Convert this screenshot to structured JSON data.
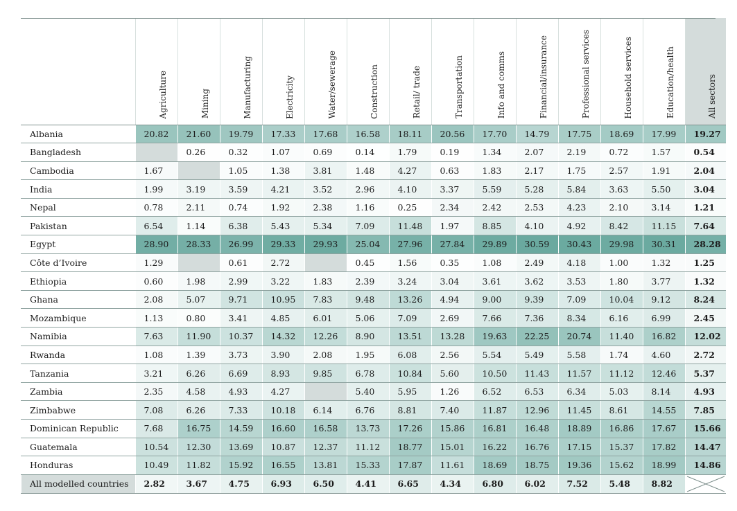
{
  "columns": [
    "Agriculture",
    "Mining",
    "Manufacturing",
    "Electricity",
    "Water/sewerage",
    "Construction",
    "Retail/ trade",
    "Transportation",
    "Info and comms",
    "Financial/insurance",
    "Professional services",
    "Household services",
    "Education/health",
    "All sectors"
  ],
  "rows": [
    {
      "country": "Albania",
      "values": [
        "20.82",
        "21.60",
        "19.79",
        "17.33",
        "17.68",
        "16.58",
        "18.11",
        "20.56",
        "17.70",
        "14.79",
        "17.75",
        "18.69",
        "17.99",
        "19.27"
      ]
    },
    {
      "country": "Bangladesh",
      "values": [
        "",
        "0.26",
        "0.32",
        "1.07",
        "0.69",
        "0.14",
        "1.79",
        "0.19",
        "1.34",
        "2.07",
        "2.19",
        "0.72",
        "1.57",
        "0.54"
      ]
    },
    {
      "country": "Cambodia",
      "values": [
        "1.67",
        "",
        "1.05",
        "1.38",
        "3.81",
        "1.48",
        "4.27",
        "0.63",
        "1.83",
        "2.17",
        "1.75",
        "2.57",
        "1.91",
        "2.04"
      ]
    },
    {
      "country": "India",
      "values": [
        "1.99",
        "3.19",
        "3.59",
        "4.21",
        "3.52",
        "2.96",
        "4.10",
        "3.37",
        "5.59",
        "5.28",
        "5.84",
        "3.63",
        "5.50",
        "3.04"
      ]
    },
    {
      "country": "Nepal",
      "values": [
        "0.78",
        "2.11",
        "0.74",
        "1.92",
        "2.38",
        "1.16",
        "0.25",
        "2.34",
        "2.42",
        "2.53",
        "4.23",
        "2.10",
        "3.14",
        "1.21"
      ]
    },
    {
      "country": "Pakistan",
      "values": [
        "6.54",
        "1.14",
        "6.38",
        "5.43",
        "5.34",
        "7.09",
        "11.48",
        "1.97",
        "8.85",
        "4.10",
        "4.92",
        "8.42",
        "11.15",
        "7.64"
      ]
    },
    {
      "country": "Egypt",
      "values": [
        "28.90",
        "28.33",
        "26.99",
        "29.33",
        "29.93",
        "25.04",
        "27.96",
        "27.84",
        "29.89",
        "30.59",
        "30.43",
        "29.98",
        "30.31",
        "28.28"
      ]
    },
    {
      "country": "Côte d’Ivoire",
      "values": [
        "1.29",
        "",
        "0.61",
        "2.72",
        "",
        "0.45",
        "1.56",
        "0.35",
        "1.08",
        "2.49",
        "4.18",
        "1.00",
        "1.32",
        "1.25"
      ]
    },
    {
      "country": "Ethiopia",
      "values": [
        "0.60",
        "1.98",
        "2.99",
        "3.22",
        "1.83",
        "2.39",
        "3.24",
        "3.04",
        "3.61",
        "3.62",
        "3.53",
        "1.80",
        "3.77",
        "1.32"
      ]
    },
    {
      "country": "Ghana",
      "values": [
        "2.08",
        "5.07",
        "9.71",
        "10.95",
        "7.83",
        "9.48",
        "13.26",
        "4.94",
        "9.00",
        "9.39",
        "7.09",
        "10.04",
        "9.12",
        "8.24"
      ]
    },
    {
      "country": "Mozambique",
      "values": [
        "1.13",
        "0.80",
        "3.41",
        "4.85",
        "6.01",
        "5.06",
        "7.09",
        "2.69",
        "7.66",
        "7.36",
        "8.34",
        "6.16",
        "6.99",
        "2.45"
      ]
    },
    {
      "country": "Namibia",
      "values": [
        "7.63",
        "11.90",
        "10.37",
        "14.32",
        "12.26",
        "8.90",
        "13.51",
        "13.28",
        "19.63",
        "22.25",
        "20.74",
        "11.40",
        "16.82",
        "12.02"
      ]
    },
    {
      "country": "Rwanda",
      "values": [
        "1.08",
        "1.39",
        "3.73",
        "3.90",
        "2.08",
        "1.95",
        "6.08",
        "2.56",
        "5.54",
        "5.49",
        "5.58",
        "1.74",
        "4.60",
        "2.72"
      ]
    },
    {
      "country": "Tanzania",
      "values": [
        "3.21",
        "6.26",
        "6.69",
        "8.93",
        "9.85",
        "6.78",
        "10.84",
        "5.60",
        "10.50",
        "11.43",
        "11.57",
        "11.12",
        "12.46",
        "5.37"
      ]
    },
    {
      "country": "Zambia",
      "values": [
        "2.35",
        "4.58",
        "4.93",
        "4.27",
        "",
        "5.40",
        "5.95",
        "1.26",
        "6.52",
        "6.53",
        "6.34",
        "5.03",
        "8.14",
        "4.93"
      ]
    },
    {
      "country": "Zimbabwe",
      "values": [
        "7.08",
        "6.26",
        "7.33",
        "10.18",
        "6.14",
        "6.76",
        "8.81",
        "7.40",
        "11.87",
        "12.96",
        "11.45",
        "8.61",
        "14.55",
        "7.85"
      ]
    },
    {
      "country": "Dominican Republic",
      "values": [
        "7.68",
        "16.75",
        "14.59",
        "16.60",
        "16.58",
        "13.73",
        "17.26",
        "15.86",
        "16.81",
        "16.48",
        "18.89",
        "16.86",
        "17.67",
        "15.66"
      ]
    },
    {
      "country": "Guatemala",
      "values": [
        "10.54",
        "12.30",
        "13.69",
        "10.87",
        "12.37",
        "11.12",
        "18.77",
        "15.01",
        "16.22",
        "16.76",
        "17.15",
        "15.37",
        "17.82",
        "14.47"
      ]
    },
    {
      "country": "Honduras",
      "values": [
        "10.49",
        "11.82",
        "15.92",
        "16.55",
        "13.81",
        "15.33",
        "17.87",
        "11.61",
        "18.69",
        "18.75",
        "19.36",
        "15.62",
        "18.99",
        "14.86"
      ]
    }
  ],
  "footer": {
    "label": "All modelled countries",
    "values": [
      "2.82",
      "3.67",
      "4.75",
      "6.93",
      "6.50",
      "4.41",
      "6.65",
      "4.34",
      "6.80",
      "6.02",
      "7.52",
      "5.48",
      "8.82",
      ""
    ]
  },
  "colors": {
    "low": "#ffffff",
    "high": "#6fada3",
    "missing": "#d4dcdb",
    "rule": "#8fa3a0"
  }
}
